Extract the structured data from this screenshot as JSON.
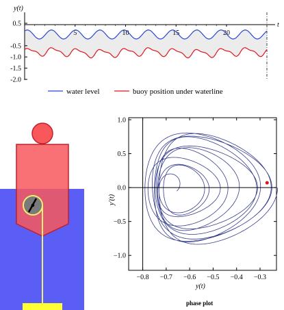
{
  "chart_data": [
    {
      "type": "line",
      "ylabel": "y(t)",
      "xlabel": "t",
      "x_ticks": [
        5,
        10,
        15,
        20
      ],
      "y_ticks": [
        "0.5",
        "-0.5",
        "-1.0",
        "-1.5",
        "-2.0"
      ],
      "xlim": [
        0,
        24
      ],
      "ylim": [
        -2.0,
        0.5
      ],
      "current_t": 24,
      "series": [
        {
          "name": "water level",
          "color": "#2646d8",
          "mean": 0.0,
          "amplitude": 0.2,
          "period": 2.4
        },
        {
          "name": "buoy position under waterline",
          "color": "#e0141b",
          "mean": -0.8,
          "amplitude": 0.16,
          "period": 2.4
        }
      ],
      "fill_between_color": "#ececec",
      "legend": [
        "water level",
        "buoy position under waterline"
      ],
      "legend_position": "bottom"
    },
    {
      "type": "line",
      "title": "phase plot",
      "xlabel": "y(t)",
      "ylabel": "y′(t)",
      "x_ticks": [
        "-0.8",
        "-0.7",
        "-0.6",
        "-0.5",
        "-0.4",
        "-0.3"
      ],
      "y_ticks": [
        "1.0",
        "0.5",
        "0.0",
        "-0.5",
        "-1.0"
      ],
      "xlim": [
        -0.86,
        -0.23
      ],
      "ylim": [
        -1.22,
        1.03
      ],
      "trajectory_color": "#343c8c",
      "current_point": {
        "y": -0.27,
        "dy": 0.07,
        "color": "#e0141b"
      },
      "attractor": {
        "cx": -0.535,
        "cy": 0.0,
        "rx": 0.255,
        "ry": 0.8
      }
    }
  ],
  "animation": {
    "water_color": "#5b5ef4",
    "buoy_color": "#f8585c",
    "buoy_stroke": "#c02028",
    "dial_color": "#7a7a7a",
    "rope_color": "#f3f070",
    "anchor_color": "#ffff33"
  }
}
